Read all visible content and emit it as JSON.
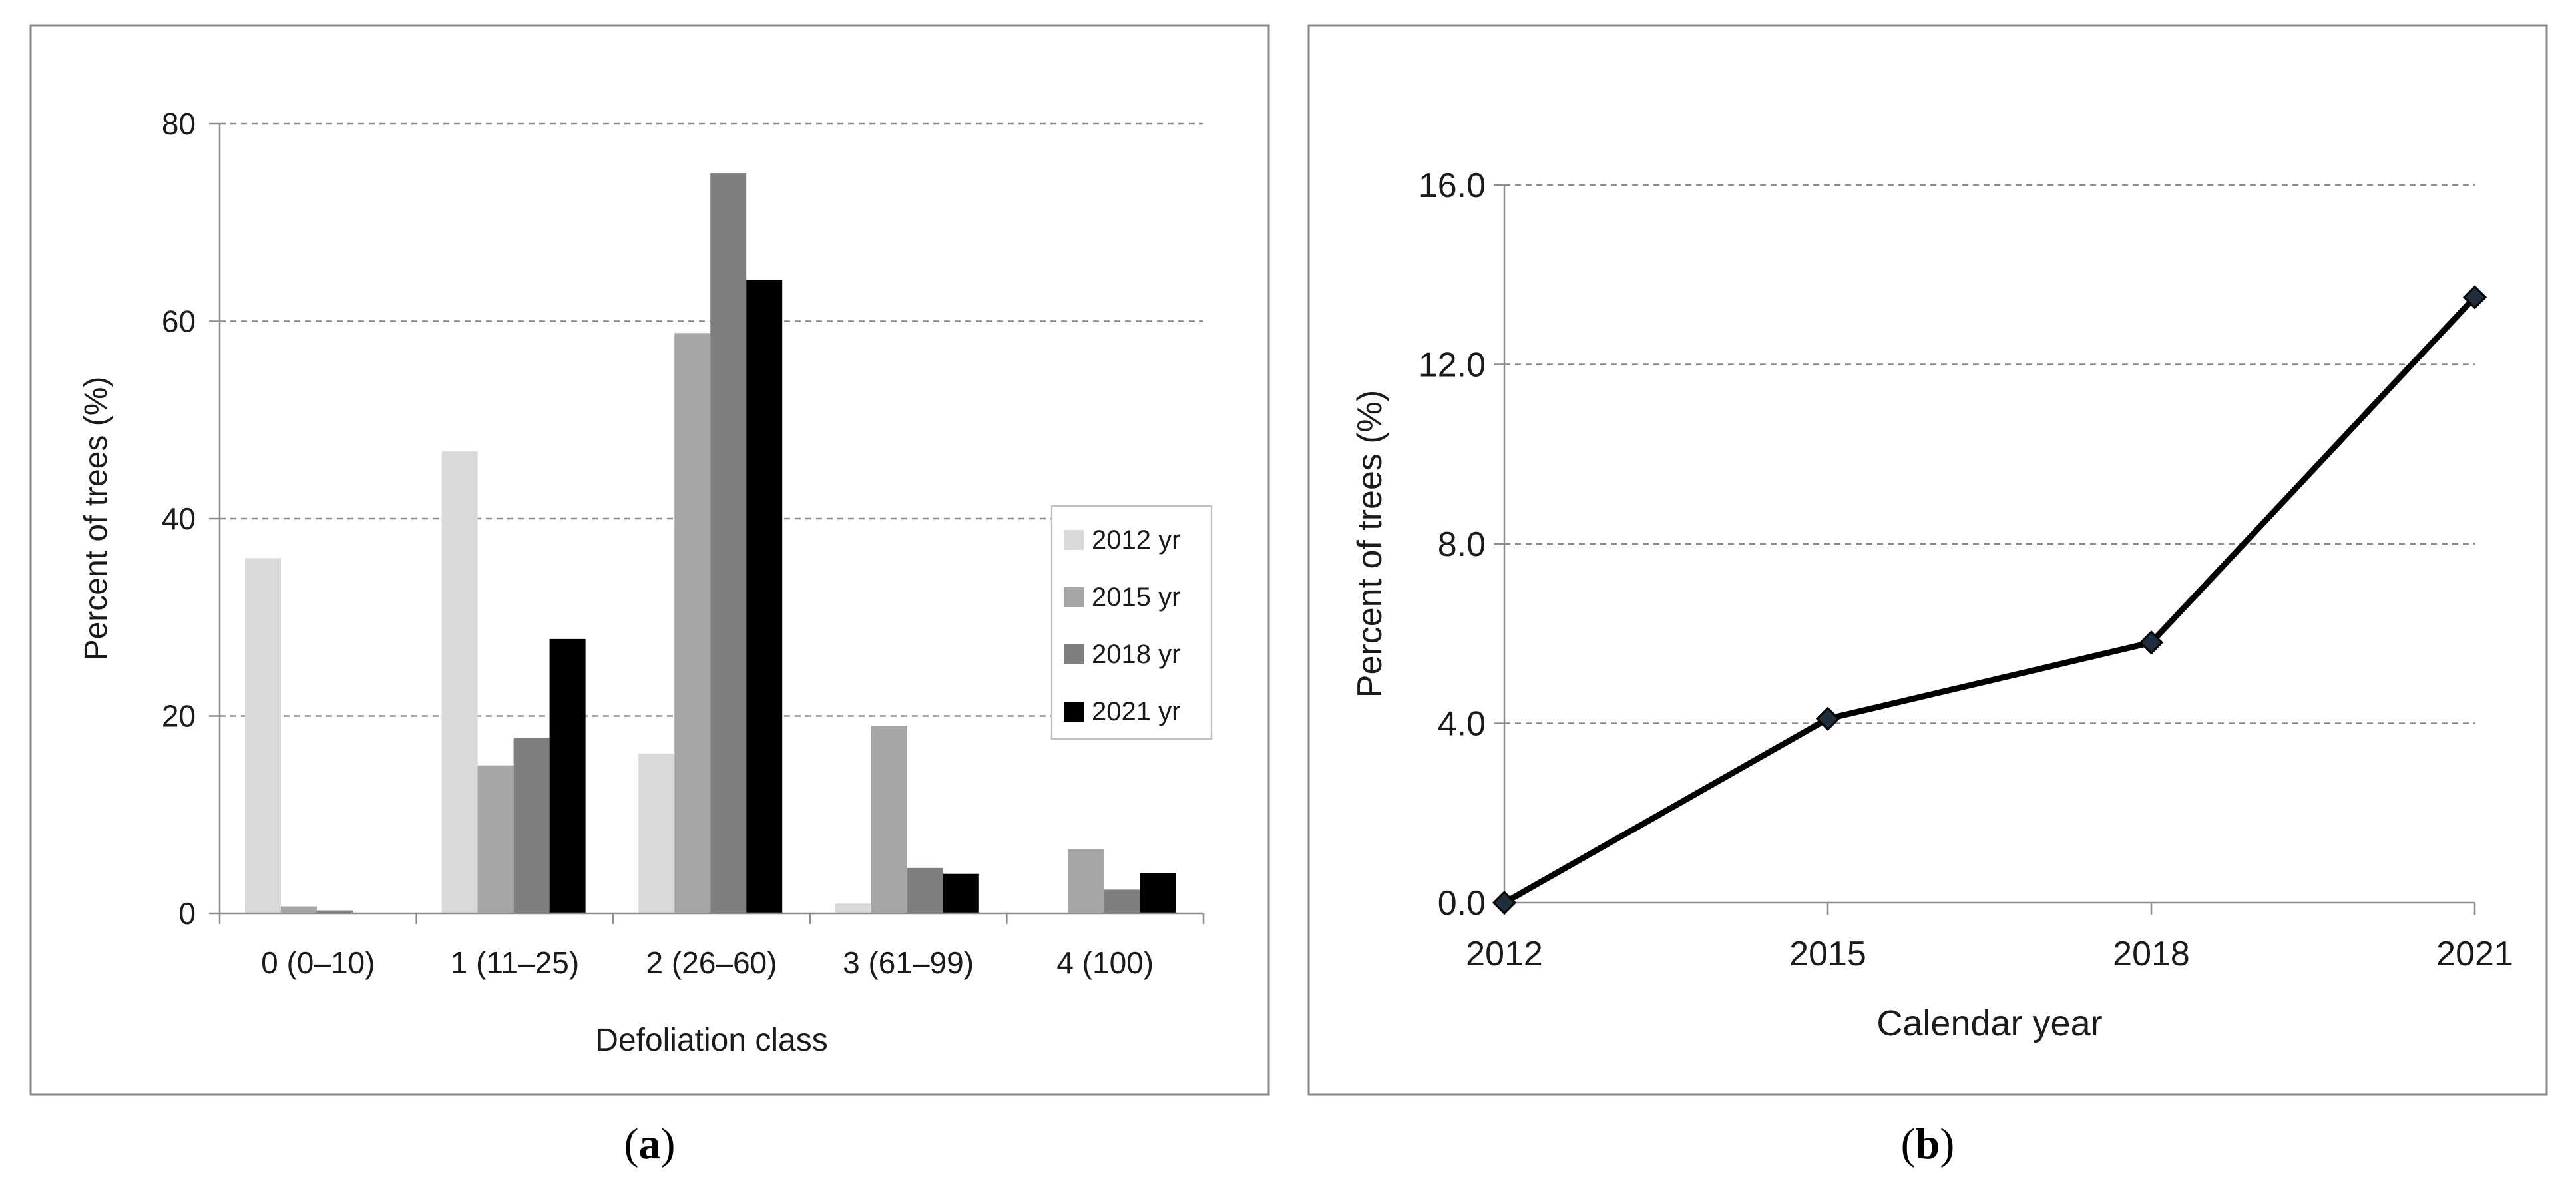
{
  "panels": {
    "a": {
      "label_open": "(",
      "label_letter": "a",
      "label_close": ")"
    },
    "b": {
      "label_open": "(",
      "label_letter": "b",
      "label_close": ")"
    }
  },
  "chart_data": [
    {
      "type": "bar",
      "xlabel": "Defoliation class",
      "ylabel": "Percent of trees (%)",
      "ylim": [
        0,
        80
      ],
      "yticks": [
        "0",
        "20",
        "40",
        "60",
        "80"
      ],
      "categories": [
        "0 (0–10)",
        "1 (11–25)",
        "2 (26–60)",
        "3 (61–99)",
        "4 (100)"
      ],
      "series": [
        {
          "name": "2012 yr",
          "color": "#d9d9d9",
          "values": [
            36.0,
            46.8,
            16.2,
            1.0,
            0.0
          ]
        },
        {
          "name": "2015 yr",
          "color": "#a6a6a6",
          "values": [
            0.7,
            15.0,
            58.8,
            19.0,
            6.5
          ]
        },
        {
          "name": "2018 yr",
          "color": "#7f7f7f",
          "values": [
            0.3,
            17.8,
            75.0,
            4.6,
            2.4
          ]
        },
        {
          "name": "2021 yr",
          "color": "#000000",
          "values": [
            0.0,
            27.8,
            64.2,
            4.0,
            4.1
          ]
        }
      ],
      "grid": true,
      "legend": "right"
    },
    {
      "type": "line",
      "xlabel": "Calendar year",
      "ylabel": "Percent of trees (%)",
      "ylim": [
        0,
        16
      ],
      "yticks": [
        "0.0",
        "4.0",
        "8.0",
        "12.0",
        "16.0"
      ],
      "x": [
        "2012",
        "2015",
        "2018",
        "2021"
      ],
      "series": [
        {
          "color": "#000000",
          "values": [
            0.0,
            4.1,
            5.8,
            13.5
          ]
        }
      ],
      "grid": true
    }
  ]
}
